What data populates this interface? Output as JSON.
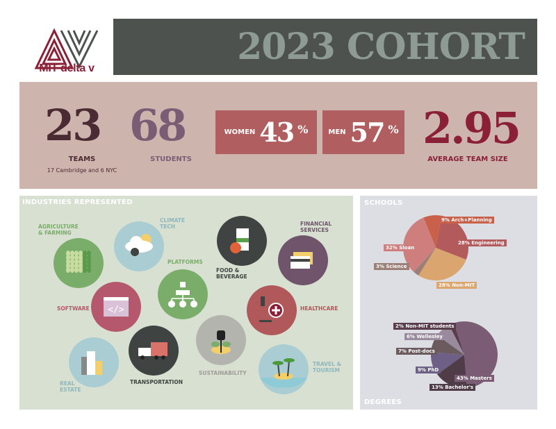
{
  "logo": {
    "text": "MIT delta v"
  },
  "header": {
    "title": "2023 COHORT"
  },
  "stats": {
    "teams": {
      "value": "23",
      "label": "TEAMS",
      "sub": "17 Cambridge and 6 NYC"
    },
    "students": {
      "value": "68",
      "label": "STUDENTS"
    },
    "women": {
      "label": "WOMEN",
      "value": "43",
      "unit": "%"
    },
    "men": {
      "label": "MEN",
      "value": "57",
      "unit": "%"
    },
    "team_size": {
      "value": "2.95",
      "label": "AVERAGE TEAM SIZE"
    }
  },
  "industries": {
    "title": "INDUSTRIES REPRESENTED",
    "items": [
      {
        "label": "AGRICULTURE\n& FARMING",
        "icon": "wheat-icon",
        "color": "#7aad6a",
        "text_color": "#7aad6a"
      },
      {
        "label": "CLIMATE\nTECH",
        "icon": "cloud-gear-icon",
        "color": "#a9cdd3",
        "text_color": "#8fb5bd"
      },
      {
        "label": "PLATFORMS",
        "icon": "network-icon",
        "color": "#7aad6a",
        "text_color": "#7aad6a"
      },
      {
        "label": "FOOD &\nBEVERAGE",
        "icon": "milk-carton-icon",
        "color": "#3f4442",
        "text_color": "#3f4442"
      },
      {
        "label": "FINANCIAL\nSERVICES",
        "icon": "credit-card-icon",
        "color": "#70546b",
        "text_color": "#70546b"
      },
      {
        "label": "SOFTWARE",
        "icon": "code-window-icon",
        "color": "#b5586d",
        "text_color": "#b5586d"
      },
      {
        "label": "HEALTHCARE",
        "icon": "microscope-icon",
        "color": "#b0585a",
        "text_color": "#b0585a"
      },
      {
        "label": "TRANSPORTATION",
        "icon": "truck-icon",
        "color": "#3f4442",
        "text_color": "#3f4442"
      },
      {
        "label": "SUSTAINABILITY",
        "icon": "plug-plant-icon",
        "color": "#b3b4ad",
        "text_color": "#9d9e97"
      },
      {
        "label": "REAL\nESTATE",
        "icon": "buildings-icon",
        "color": "#a9cdd3",
        "text_color": "#8fb5bd"
      },
      {
        "label": "TRAVEL &\nTOURISM",
        "icon": "palm-island-icon",
        "color": "#a9cdd3",
        "text_color": "#8fb5bd"
      }
    ]
  },
  "chart_data": [
    {
      "type": "pie",
      "title": "SCHOOLS",
      "slices": [
        {
          "label": "9% Arch+Planning",
          "value": 9,
          "color": "#c9604a"
        },
        {
          "label": "28% Engineering",
          "value": 28,
          "color": "#b35a5c"
        },
        {
          "label": "28% Non-MIT",
          "value": 28,
          "color": "#dba56f"
        },
        {
          "label": "3% Science",
          "value": 3,
          "color": "#9c8078"
        },
        {
          "label": "32% Sloan",
          "value": 32,
          "color": "#cf7e7e"
        }
      ]
    },
    {
      "type": "pie",
      "title": "DEGREES",
      "slices": [
        {
          "label": "43% Masters",
          "value": 43,
          "color": "#7a5d74"
        },
        {
          "label": "13% Bachelor's",
          "value": 13,
          "color": "#4f3c47"
        },
        {
          "label": "9% PhD",
          "value": 9,
          "color": "#6e5f86"
        },
        {
          "label": "7% Post-docs",
          "value": 7,
          "color": "#6b5a5e"
        },
        {
          "label": "6% Wellesley",
          "value": 6,
          "color": "#9a8a9e"
        },
        {
          "label": "2% Non-MIT students",
          "value": 2,
          "color": "#5a3d4c"
        }
      ]
    }
  ]
}
